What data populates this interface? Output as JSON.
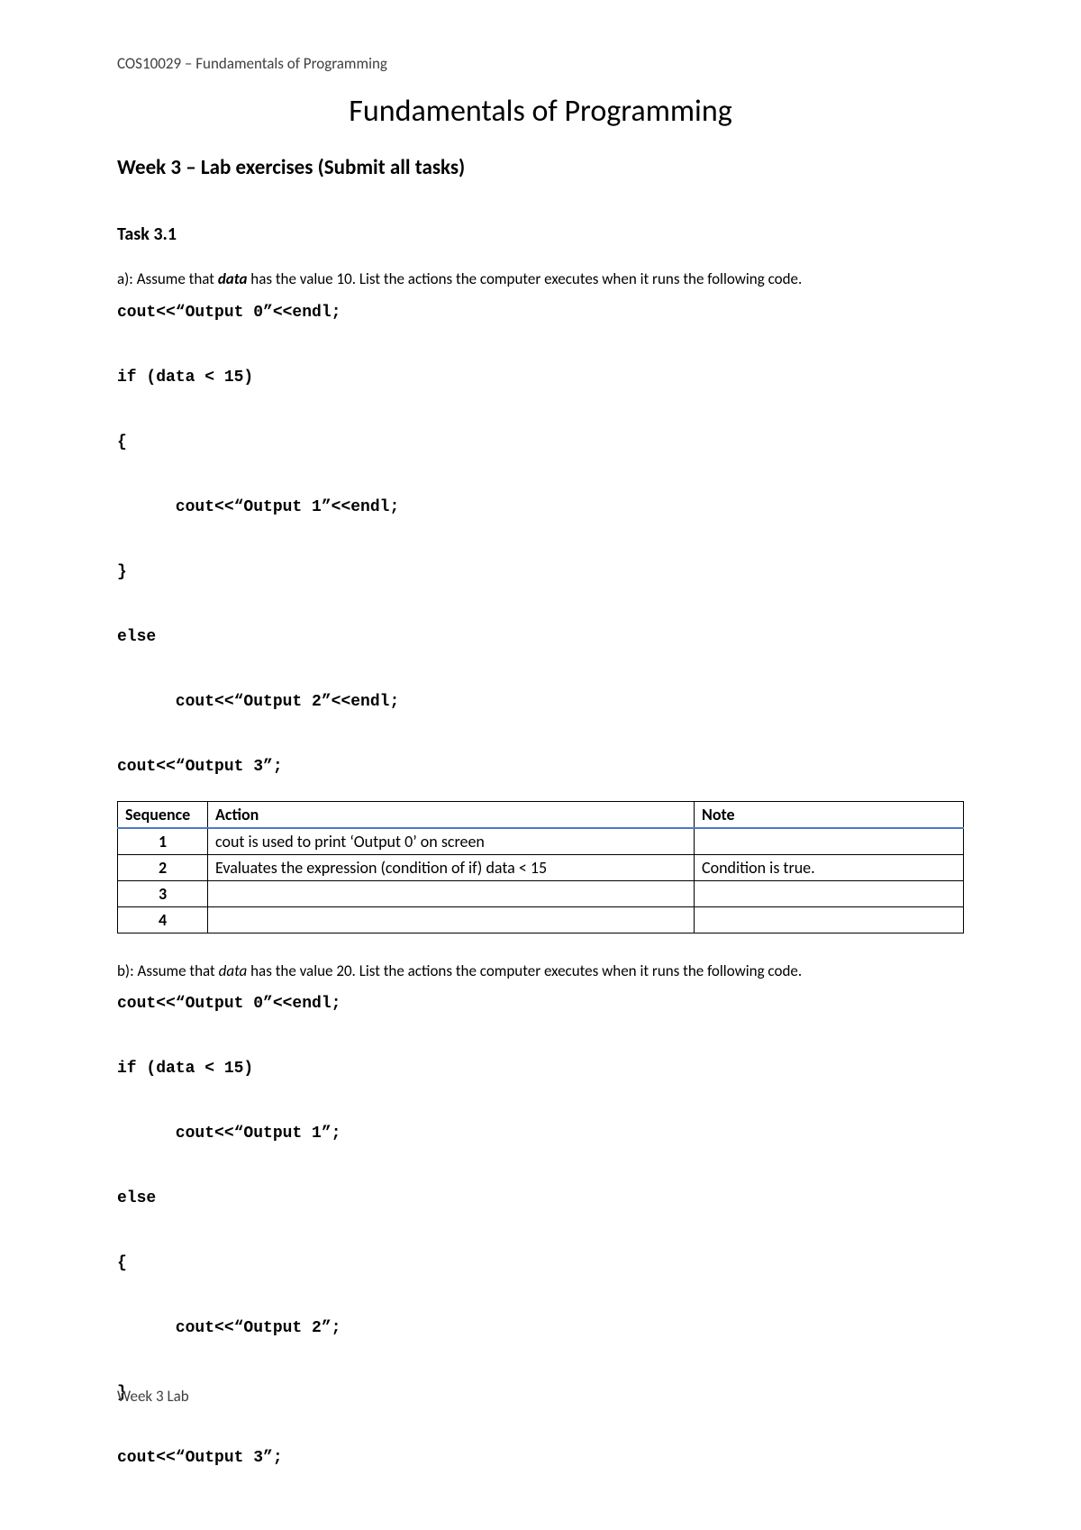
{
  "header": {
    "course_line": "COS10029 – Fundamentals of Programming"
  },
  "title": "Fundamentals of Programming",
  "subtitle": "Week 3 – Lab exercises (Submit all tasks)",
  "task_heading": "Task 3.1",
  "part_a": {
    "label": "a):",
    "intro_pre": " Assume that ",
    "intro_bold": "data",
    "intro_post": " has the value 10. List the actions the computer executes when it runs the following code.",
    "code_lines": [
      "cout<<“Output 0”<<endl;",
      "",
      "if (data < 15)",
      "",
      "{",
      "",
      "      cout<<“Output 1”<<endl;",
      "",
      "}",
      "",
      "else",
      "",
      "      cout<<“Output 2”<<endl;",
      "",
      "cout<<“Output 3”;"
    ]
  },
  "table_a": {
    "columns": [
      "Sequence",
      "Action",
      "Note"
    ],
    "header_border_color": "#4a7cbf",
    "rows": [
      {
        "seq": "1",
        "action": "cout is used to print ‘Output 0’ on screen",
        "note": ""
      },
      {
        "seq": "2",
        "action": "Evaluates the expression (condition of if) data < 15",
        "note": "Condition is true."
      },
      {
        "seq": "3",
        "action": "",
        "note": ""
      },
      {
        "seq": "4",
        "action": "",
        "note": ""
      }
    ]
  },
  "part_b": {
    "label": "b):",
    "intro_pre": " Assume that ",
    "intro_italic": "data",
    "intro_post": " has the value 20. List the actions the computer executes when it runs the following code.",
    "code_lines": [
      "cout<<“Output 0”<<endl;",
      "",
      "if (data < 15)",
      "",
      "      cout<<“Output 1”;",
      "",
      "else",
      "",
      "{",
      "",
      "      cout<<“Output 2”;",
      "",
      "}",
      "",
      "cout<<“Output 3”;"
    ]
  },
  "footer": "Week 3 Lab"
}
